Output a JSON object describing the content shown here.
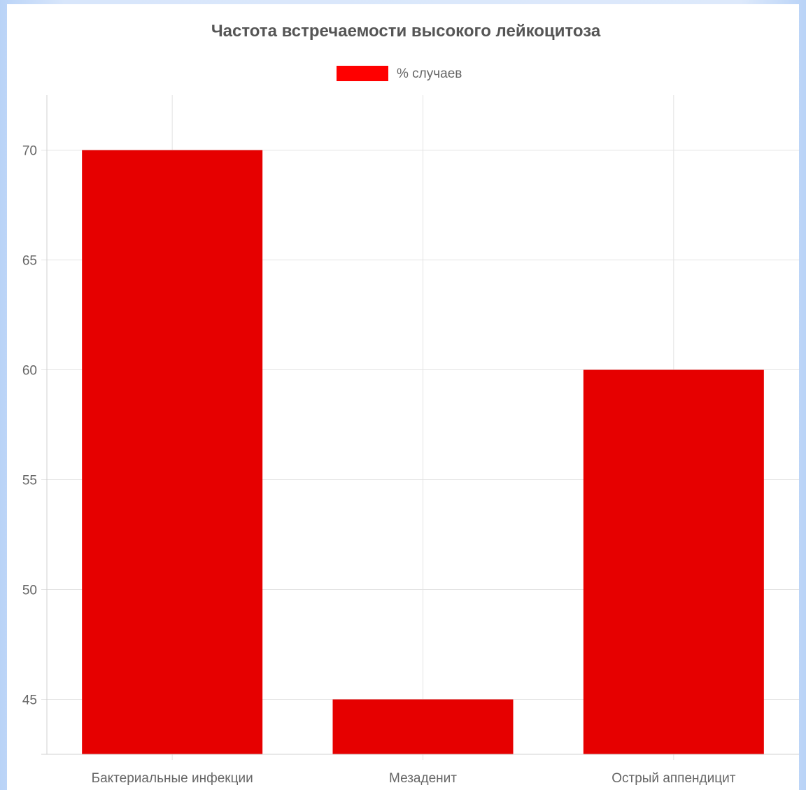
{
  "chart_data": {
    "type": "bar",
    "title": "Частота встречаемости высокого лейкоцитоза",
    "categories": [
      "Бактериальные инфекции",
      "Мезаденит",
      "Острый аппендицит"
    ],
    "series": [
      {
        "name": "% случаев",
        "values": [
          70,
          45,
          60
        ],
        "color": "#e60000"
      }
    ],
    "legend_color": "#ff0000",
    "ylim": [
      42.5,
      72.5
    ],
    "yticks": [
      45,
      50,
      55,
      60,
      65,
      70
    ],
    "grid": true,
    "legend_position": "top",
    "xlabel": "",
    "ylabel": ""
  }
}
